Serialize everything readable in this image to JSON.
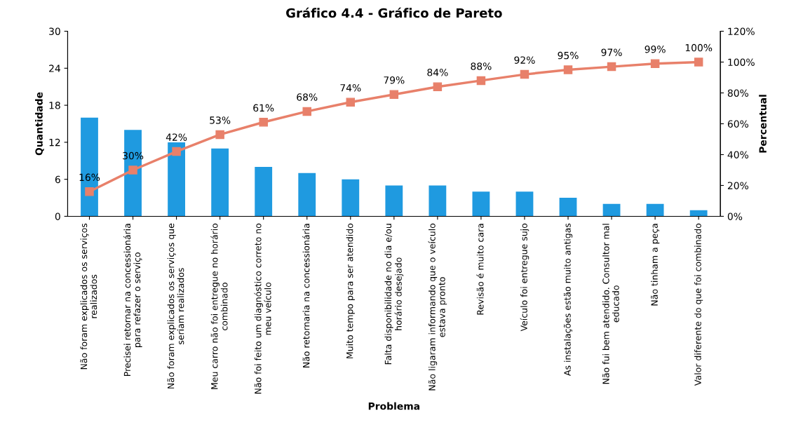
{
  "chart_data": {
    "type": "bar",
    "title": "Gráfico 4.4 - Gráfico de Pareto",
    "xlabel": "Problema",
    "ylabel": "Quantidade",
    "y2label": "Percentual",
    "categories": [
      "Não foram explicados os serviços\nrealizados",
      "Precisei retornar na concessionária\npara refazer o serviço",
      "Não foram explicados os serviços que\nseriam realizados",
      "Meu carro não foi entregue no horário\ncombinado",
      "Não foi feito um diagnóstico correto no\nmeu veículo",
      "Não retornaria na concessionária",
      "Muito tempo para ser atendido",
      "Falta disponibilidade no dia e/ou\nhorário desejado",
      "Não ligaram informando que o veículo\nestava pronto",
      "Revisão é muito cara",
      "Veículo foi entregue sujo",
      "As instalações estão muito antigas",
      "Não fui bem atendido. Consultor mal\neducado",
      "Não tinham a peça",
      "Valor diferente do que foi combinado"
    ],
    "series": [
      {
        "color": "#1f9ae0",
        "values": [
          16,
          14,
          12,
          11,
          8,
          7,
          6,
          5,
          5,
          4,
          4,
          3,
          2,
          2,
          1
        ]
      },
      {
        "type": "line",
        "axis": "y2",
        "color": "#e8806a",
        "marker": "square",
        "values": [
          16,
          30,
          42,
          53,
          61,
          68,
          74,
          79,
          84,
          88,
          92,
          95,
          97,
          99,
          100
        ],
        "value_labels": [
          "16%",
          "30%",
          "42%",
          "53%",
          "61%",
          "68%",
          "74%",
          "79%",
          "84%",
          "88%",
          "92%",
          "95%",
          "97%",
          "99%",
          "100%"
        ]
      }
    ],
    "ylim": [
      0,
      30
    ],
    "yticks": [
      0,
      6,
      12,
      18,
      24,
      30
    ],
    "y2lim": [
      0,
      120
    ],
    "y2ticks": [
      {
        "value": 0,
        "label": "0%"
      },
      {
        "value": 20,
        "label": "20%"
      },
      {
        "value": 40,
        "label": "40%"
      },
      {
        "value": 60,
        "label": "60%"
      },
      {
        "value": 80,
        "label": "80%"
      },
      {
        "value": 100,
        "label": "100%"
      },
      {
        "value": 120,
        "label": "120%"
      }
    ],
    "grid": false,
    "legend": false
  }
}
